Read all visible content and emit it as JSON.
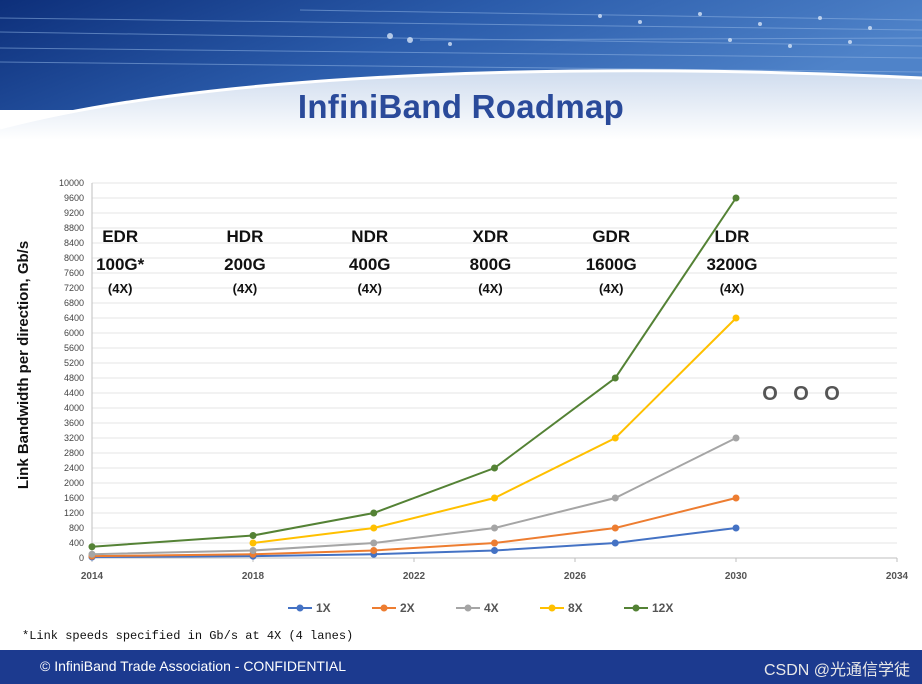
{
  "title": "InfiniBand Roadmap",
  "footnote": "*Link speeds specified in Gb/s at 4X (4 lanes)",
  "footer": {
    "copyright": "© InfiniBand Trade Association - CONFIDENTIAL",
    "watermark": "CSDN @光通信学徒"
  },
  "colors": {
    "title": "#2a4a9a",
    "footer_bg": "#1c3a8f",
    "banner_dark": "#0d2f7a",
    "banner_light": "#4f83c9"
  },
  "chart_data": {
    "type": "line",
    "ylabel": "Link Bandwidth per direction, Gb/s",
    "xlabel": "",
    "xlim": [
      2014,
      2034
    ],
    "ylim": [
      0,
      10000
    ],
    "x_ticks": [
      "2014",
      "2018",
      "2022",
      "2026",
      "2030",
      "2034"
    ],
    "y_ticks": [
      "0",
      "400",
      "800",
      "1200",
      "1600",
      "2000",
      "2400",
      "2800",
      "3200",
      "3600",
      "4000",
      "4400",
      "4800",
      "5200",
      "5600",
      "6000",
      "6400",
      "6800",
      "7200",
      "7600",
      "8000",
      "8400",
      "8800",
      "9200",
      "9600",
      "10000"
    ],
    "legend_position": "bottom",
    "series": [
      {
        "name": "1X",
        "color": "#4472c4",
        "points": [
          [
            2014,
            25
          ],
          [
            2018,
            50
          ],
          [
            2021,
            100
          ],
          [
            2024,
            200
          ],
          [
            2027,
            400
          ],
          [
            2030,
            800
          ]
        ]
      },
      {
        "name": "2X",
        "color": "#ed7d31",
        "points": [
          [
            2014,
            50
          ],
          [
            2018,
            100
          ],
          [
            2021,
            200
          ],
          [
            2024,
            400
          ],
          [
            2027,
            800
          ],
          [
            2030,
            1600
          ]
        ]
      },
      {
        "name": "4X",
        "color": "#a5a5a5",
        "points": [
          [
            2014,
            100
          ],
          [
            2018,
            200
          ],
          [
            2021,
            400
          ],
          [
            2024,
            800
          ],
          [
            2027,
            1600
          ],
          [
            2030,
            3200
          ]
        ]
      },
      {
        "name": "8X",
        "color": "#ffc000",
        "points": [
          [
            2018,
            400
          ],
          [
            2021,
            800
          ],
          [
            2024,
            1600
          ],
          [
            2027,
            3200
          ],
          [
            2030,
            6400
          ]
        ]
      },
      {
        "name": "12X",
        "color": "#548235",
        "points": [
          [
            2014,
            300
          ],
          [
            2018,
            600
          ],
          [
            2021,
            1200
          ],
          [
            2024,
            2400
          ],
          [
            2027,
            4800
          ],
          [
            2030,
            9600
          ]
        ]
      }
    ],
    "annotations": [
      {
        "gen": "EDR",
        "speed": "100G*",
        "lanes": "(4X)",
        "year": 2014.7
      },
      {
        "gen": "HDR",
        "speed": "200G",
        "lanes": "(4X)",
        "year": 2017.8
      },
      {
        "gen": "NDR",
        "speed": "400G",
        "lanes": "(4X)",
        "year": 2020.9
      },
      {
        "gen": "XDR",
        "speed": "800G",
        "lanes": "(4X)",
        "year": 2023.9
      },
      {
        "gen": "GDR",
        "speed": "1600G",
        "lanes": "(4X)",
        "year": 2026.9
      },
      {
        "gen": "LDR",
        "speed": "3200G",
        "lanes": "(4X)",
        "year": 2029.9
      }
    ],
    "continuation_marker": [
      "O",
      "O",
      "O"
    ]
  }
}
